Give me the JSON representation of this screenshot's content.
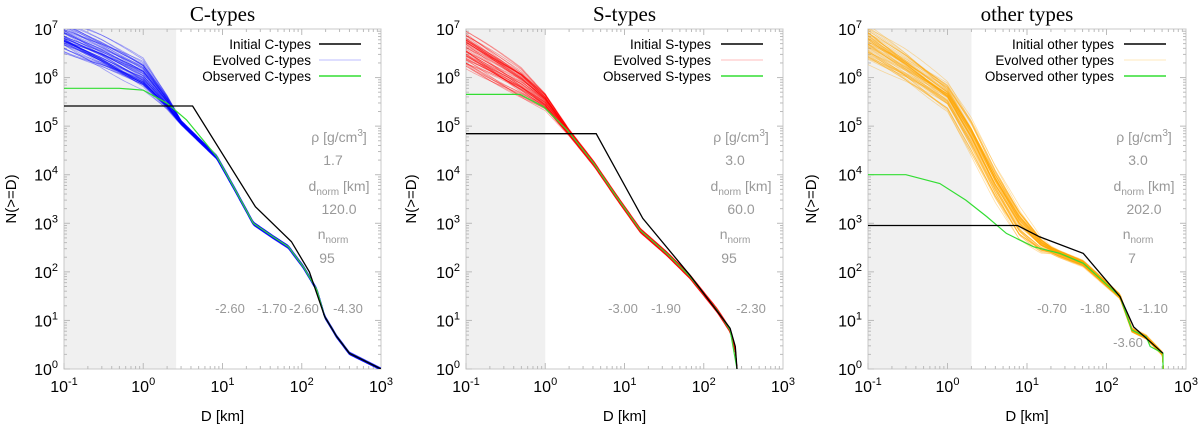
{
  "chart_data": [
    {
      "type": "line",
      "title": "C-types",
      "xlabel": "D [km]",
      "ylabel": "N(>=D)",
      "xscale": "log",
      "yscale": "log",
      "xlim": [
        0.1,
        1000
      ],
      "ylim": [
        1,
        10000000
      ],
      "xticks": [
        {
          "base": "10",
          "exp": "-1"
        },
        {
          "base": "10",
          "exp": "0"
        },
        {
          "base": "10",
          "exp": "1"
        },
        {
          "base": "10",
          "exp": "2"
        },
        {
          "base": "10",
          "exp": "3"
        }
      ],
      "yticks": [
        {
          "base": "10",
          "exp": "0"
        },
        {
          "base": "10",
          "exp": "1"
        },
        {
          "base": "10",
          "exp": "2"
        },
        {
          "base": "10",
          "exp": "3"
        },
        {
          "base": "10",
          "exp": "4"
        },
        {
          "base": "10",
          "exp": "5"
        },
        {
          "base": "10",
          "exp": "6"
        },
        {
          "base": "10",
          "exp": "7"
        }
      ],
      "legend_position": "top-right",
      "shaded_region_D": [
        0.1,
        2.6
      ],
      "evolved_color": "#0000ff",
      "series": [
        {
          "name": "Initial C-types",
          "color": "#000000",
          "points": [
            [
              0.1,
              260000
            ],
            [
              4.2,
              260000
            ],
            [
              26,
              2200
            ],
            [
              74,
              420
            ],
            [
              125,
              100
            ],
            [
              195,
              12
            ],
            [
              275,
              4.7
            ],
            [
              400,
              2.1
            ],
            [
              1000,
              1
            ]
          ]
        },
        {
          "name": "Evolved C-types",
          "color": "#0000ff",
          "n_runs": 60,
          "median": [
            [
              0.1,
              8000000
            ],
            [
              0.3,
              3500000
            ],
            [
              1,
              1250000
            ],
            [
              2,
              320000
            ],
            [
              3,
              120000
            ],
            [
              8.5,
              23000
            ],
            [
              13.8,
              5600
            ],
            [
              24.5,
              1000
            ],
            [
              43.6,
              525
            ],
            [
              67.6,
              330
            ],
            [
              105,
              126
            ],
            [
              155,
              43
            ],
            [
              195,
              12
            ],
            [
              275,
              4.7
            ],
            [
              400,
              2.1
            ],
            [
              1000,
              1
            ]
          ],
          "spread_dex": [
            [
              0.1,
              0.3
            ],
            [
              1,
              0.25
            ],
            [
              2,
              0.12
            ],
            [
              3,
              0.04
            ],
            [
              1000,
              0.02
            ]
          ]
        },
        {
          "name": "Observed C-types",
          "color": "#33dd33",
          "points": [
            [
              0.1,
              600000
            ],
            [
              0.5,
              600000
            ],
            [
              1,
              550000
            ],
            [
              2,
              295000
            ],
            [
              3.5,
              135000
            ],
            [
              8.5,
              23400
            ],
            [
              13.8,
              5600
            ],
            [
              24.5,
              1000
            ],
            [
              43.6,
              525
            ],
            [
              67.6,
              330
            ],
            [
              105,
              126
            ],
            [
              155,
              43
            ],
            [
              195,
              12
            ],
            [
              275,
              4.7
            ],
            [
              400,
              2.1
            ],
            [
              1000,
              1
            ]
          ]
        }
      ],
      "params": {
        "rho_label": "ρ [g/cm",
        "rho_sup": "3",
        "rho_close": "]",
        "rho": "1.7",
        "dnorm_label": "d",
        "dnorm_sub": "norm",
        "dnorm_unit": " [km]",
        "dnorm": "120.0",
        "nnorm_label": "n",
        "nnorm_sub": "norm",
        "nnorm": "95"
      },
      "slopes": [
        "-2.60",
        "-1.70",
        "-2.60",
        "-4.30"
      ]
    },
    {
      "type": "line",
      "title": "S-types",
      "xlabel": "D [km]",
      "ylabel": "N(>=D)",
      "xscale": "log",
      "yscale": "log",
      "xlim": [
        0.1,
        1000
      ],
      "ylim": [
        1,
        10000000
      ],
      "xticks": [
        {
          "base": "10",
          "exp": "-1"
        },
        {
          "base": "10",
          "exp": "0"
        },
        {
          "base": "10",
          "exp": "1"
        },
        {
          "base": "10",
          "exp": "2"
        },
        {
          "base": "10",
          "exp": "3"
        }
      ],
      "yticks": [
        {
          "base": "10",
          "exp": "0"
        },
        {
          "base": "10",
          "exp": "1"
        },
        {
          "base": "10",
          "exp": "2"
        },
        {
          "base": "10",
          "exp": "3"
        },
        {
          "base": "10",
          "exp": "4"
        },
        {
          "base": "10",
          "exp": "5"
        },
        {
          "base": "10",
          "exp": "6"
        },
        {
          "base": "10",
          "exp": "7"
        }
      ],
      "legend_position": "top-right",
      "shaded_region_D": [
        0.1,
        1.0
      ],
      "evolved_color": "#ff0000",
      "series": [
        {
          "name": "Initial S-types",
          "color": "#000000",
          "points": [
            [
              0.1,
              70000
            ],
            [
              4.4,
              70000
            ],
            [
              17,
              1260
            ],
            [
              67,
              85
            ],
            [
              215,
              6.9
            ],
            [
              250,
              2.9
            ],
            [
              263,
              1
            ]
          ]
        },
        {
          "name": "Evolved S-types",
          "color": "#ff0000",
          "n_runs": 60,
          "median": [
            [
              0.1,
              4000000
            ],
            [
              0.5,
              800000
            ],
            [
              1,
              330000
            ],
            [
              1.9,
              83000
            ],
            [
              4.1,
              17000
            ],
            [
              7.9,
              3550
            ],
            [
              15.8,
              720
            ],
            [
              34,
              240
            ],
            [
              67,
              80
            ],
            [
              148,
              16
            ],
            [
              215,
              6.3
            ],
            [
              250,
              2.5
            ],
            [
              263,
              1
            ]
          ],
          "spread_dex": [
            [
              0.1,
              0.3
            ],
            [
              0.5,
              0.25
            ],
            [
              1,
              0.15
            ],
            [
              2,
              0.06
            ],
            [
              5,
              0.04
            ],
            [
              1000,
              0.03
            ]
          ]
        },
        {
          "name": "Observed S-types",
          "color": "#33dd33",
          "points": [
            [
              0.1,
              450000
            ],
            [
              0.48,
              450000
            ],
            [
              0.95,
              250000
            ],
            [
              1.9,
              83000
            ],
            [
              4.1,
              17000
            ],
            [
              7.9,
              3550
            ],
            [
              15.8,
              720
            ],
            [
              34,
              240
            ],
            [
              67,
              80
            ],
            [
              148,
              16
            ],
            [
              215,
              6.3
            ],
            [
              263,
              1
            ]
          ]
        }
      ],
      "params": {
        "rho_label": "ρ [g/cm",
        "rho_sup": "3",
        "rho_close": "]",
        "rho": "3.0",
        "dnorm_label": "d",
        "dnorm_sub": "norm",
        "dnorm_unit": " [km]",
        "dnorm": "60.0",
        "nnorm_label": "n",
        "nnorm_sub": "norm",
        "nnorm": "95"
      },
      "slopes": [
        "-3.00",
        "-1.90",
        "-2.30"
      ]
    },
    {
      "type": "line",
      "title": "other types",
      "xlabel": "D [km]",
      "ylabel": "N(>=D)",
      "xscale": "log",
      "yscale": "log",
      "xlim": [
        0.1,
        1000
      ],
      "ylim": [
        1,
        10000000
      ],
      "xticks": [
        {
          "base": "10",
          "exp": "-1"
        },
        {
          "base": "10",
          "exp": "0"
        },
        {
          "base": "10",
          "exp": "1"
        },
        {
          "base": "10",
          "exp": "2"
        },
        {
          "base": "10",
          "exp": "3"
        }
      ],
      "yticks": [
        {
          "base": "10",
          "exp": "0"
        },
        {
          "base": "10",
          "exp": "1"
        },
        {
          "base": "10",
          "exp": "2"
        },
        {
          "base": "10",
          "exp": "3"
        },
        {
          "base": "10",
          "exp": "4"
        },
        {
          "base": "10",
          "exp": "5"
        },
        {
          "base": "10",
          "exp": "6"
        },
        {
          "base": "10",
          "exp": "7"
        }
      ],
      "legend_position": "top-right",
      "shaded_region_D": [
        0.1,
        2.0
      ],
      "evolved_color": "#ffa500",
      "series": [
        {
          "name": "Initial other types",
          "color": "#000000",
          "points": [
            [
              0.1,
              900
            ],
            [
              7.6,
              900
            ],
            [
              14.5,
              525
            ],
            [
              51,
              240
            ],
            [
              148,
              31
            ],
            [
              219,
              7.4
            ],
            [
              316,
              4.3
            ],
            [
              513,
              2.1
            ]
          ]
        },
        {
          "name": "Evolved other types",
          "color": "#ffa500",
          "n_runs": 60,
          "median": [
            [
              0.1,
              5000000
            ],
            [
              0.3,
              1600000
            ],
            [
              1,
              400000
            ],
            [
              2,
              60000
            ],
            [
              4,
              6500
            ],
            [
              8,
              1000
            ],
            [
              15,
              360
            ],
            [
              25,
              240
            ],
            [
              51,
              150
            ],
            [
              148,
              31
            ],
            [
              209,
              6.3
            ],
            [
              316,
              4.5
            ],
            [
              513,
              2
            ],
            [
              520,
              1
            ]
          ],
          "spread_dex": [
            [
              0.1,
              0.3
            ],
            [
              1,
              0.25
            ],
            [
              2,
              0.3
            ],
            [
              8,
              0.25
            ],
            [
              20,
              0.06
            ],
            [
              1000,
              0.03
            ]
          ]
        },
        {
          "name": "Observed other types",
          "color": "#33dd33",
          "points": [
            [
              0.1,
              10000
            ],
            [
              0.3,
              10000
            ],
            [
              0.8,
              6600
            ],
            [
              1.7,
              3000
            ],
            [
              3.1,
              1380
            ],
            [
              5.5,
              620
            ],
            [
              12,
              330
            ],
            [
              26,
              240
            ],
            [
              51,
              150
            ],
            [
              148,
              31
            ],
            [
              209,
              6.3
            ],
            [
              316,
              4.6
            ],
            [
              355,
              2.9
            ],
            [
              513,
              2.1
            ],
            [
              513,
              1
            ]
          ]
        }
      ],
      "params": {
        "rho_label": "ρ [g/cm",
        "rho_sup": "3",
        "rho_close": "]",
        "rho": "3.0",
        "dnorm_label": "d",
        "dnorm_sub": "norm",
        "dnorm_unit": " [km]",
        "dnorm": "202.0",
        "nnorm_label": "n",
        "nnorm_sub": "norm",
        "nnorm": "7"
      },
      "slopes": [
        "-0.70",
        "-1.80",
        "-1.10",
        "-3.60"
      ]
    }
  ]
}
